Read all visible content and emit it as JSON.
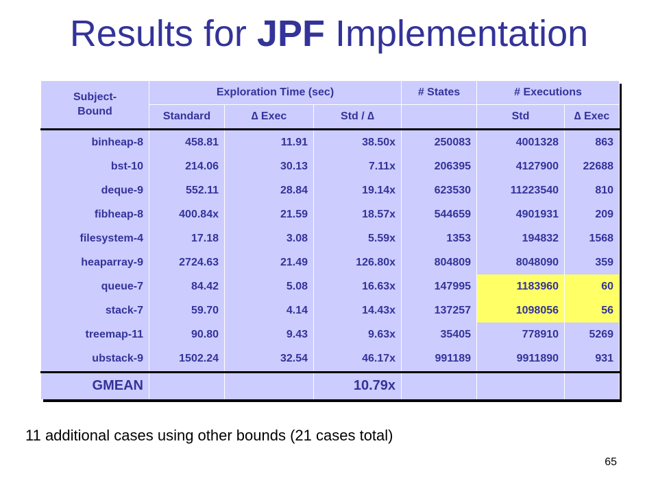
{
  "slide": {
    "title_prefix": "Results for",
    "title_bold": "JPF",
    "title_suffix": "Implementation",
    "note": "11 additional cases using other bounds (21 cases total)",
    "page_number": "65",
    "colors": {
      "title": "#333399",
      "table_bg": "#ccccff",
      "highlight": "#ffff66"
    }
  },
  "table": {
    "header_group": {
      "subject": "Subject-Bound",
      "exploration": "Exploration Time (sec)",
      "states": "# States",
      "executions": "# Executions"
    },
    "header_sub": {
      "standard": "Standard",
      "delta_exec": "∆ Exec",
      "std_ratio": "Std / ∆",
      "std": "Std",
      "delta_exec2": "∆ Exec"
    },
    "rows": [
      [
        "binheap-8",
        "458.81",
        "11.91",
        "38.50x",
        "250083",
        "4001328",
        "863"
      ],
      [
        "bst-10",
        "214.06",
        "30.13",
        "7.11x",
        "206395",
        "4127900",
        "22688"
      ],
      [
        "deque-9",
        "552.11",
        "28.84",
        "19.14x",
        "623530",
        "11223540",
        "810"
      ],
      [
        "fibheap-8",
        "400.84x",
        "21.59",
        "18.57x",
        "544659",
        "4901931",
        "209"
      ],
      [
        "filesystem-4",
        "17.18",
        "3.08",
        "5.59x",
        "1353",
        "194832",
        "1568"
      ],
      [
        "heaparray-9",
        "2724.63",
        "21.49",
        "126.80x",
        "804809",
        "8048090",
        "359"
      ],
      [
        "queue-7",
        "84.42",
        "5.08",
        "16.63x",
        "147995",
        "1183960",
        "60"
      ],
      [
        "stack-7",
        "59.70",
        "4.14",
        "14.43x",
        "137257",
        "1098056",
        "56"
      ],
      [
        "treemap-11",
        "90.80",
        "9.43",
        "9.63x",
        "35405",
        "778910",
        "5269"
      ],
      [
        "ubstack-9",
        "1502.24",
        "32.54",
        "46.17x",
        "991189",
        "9911890",
        "931"
      ]
    ],
    "gmean": {
      "label": "GMEAN",
      "value": "10.79x"
    }
  }
}
